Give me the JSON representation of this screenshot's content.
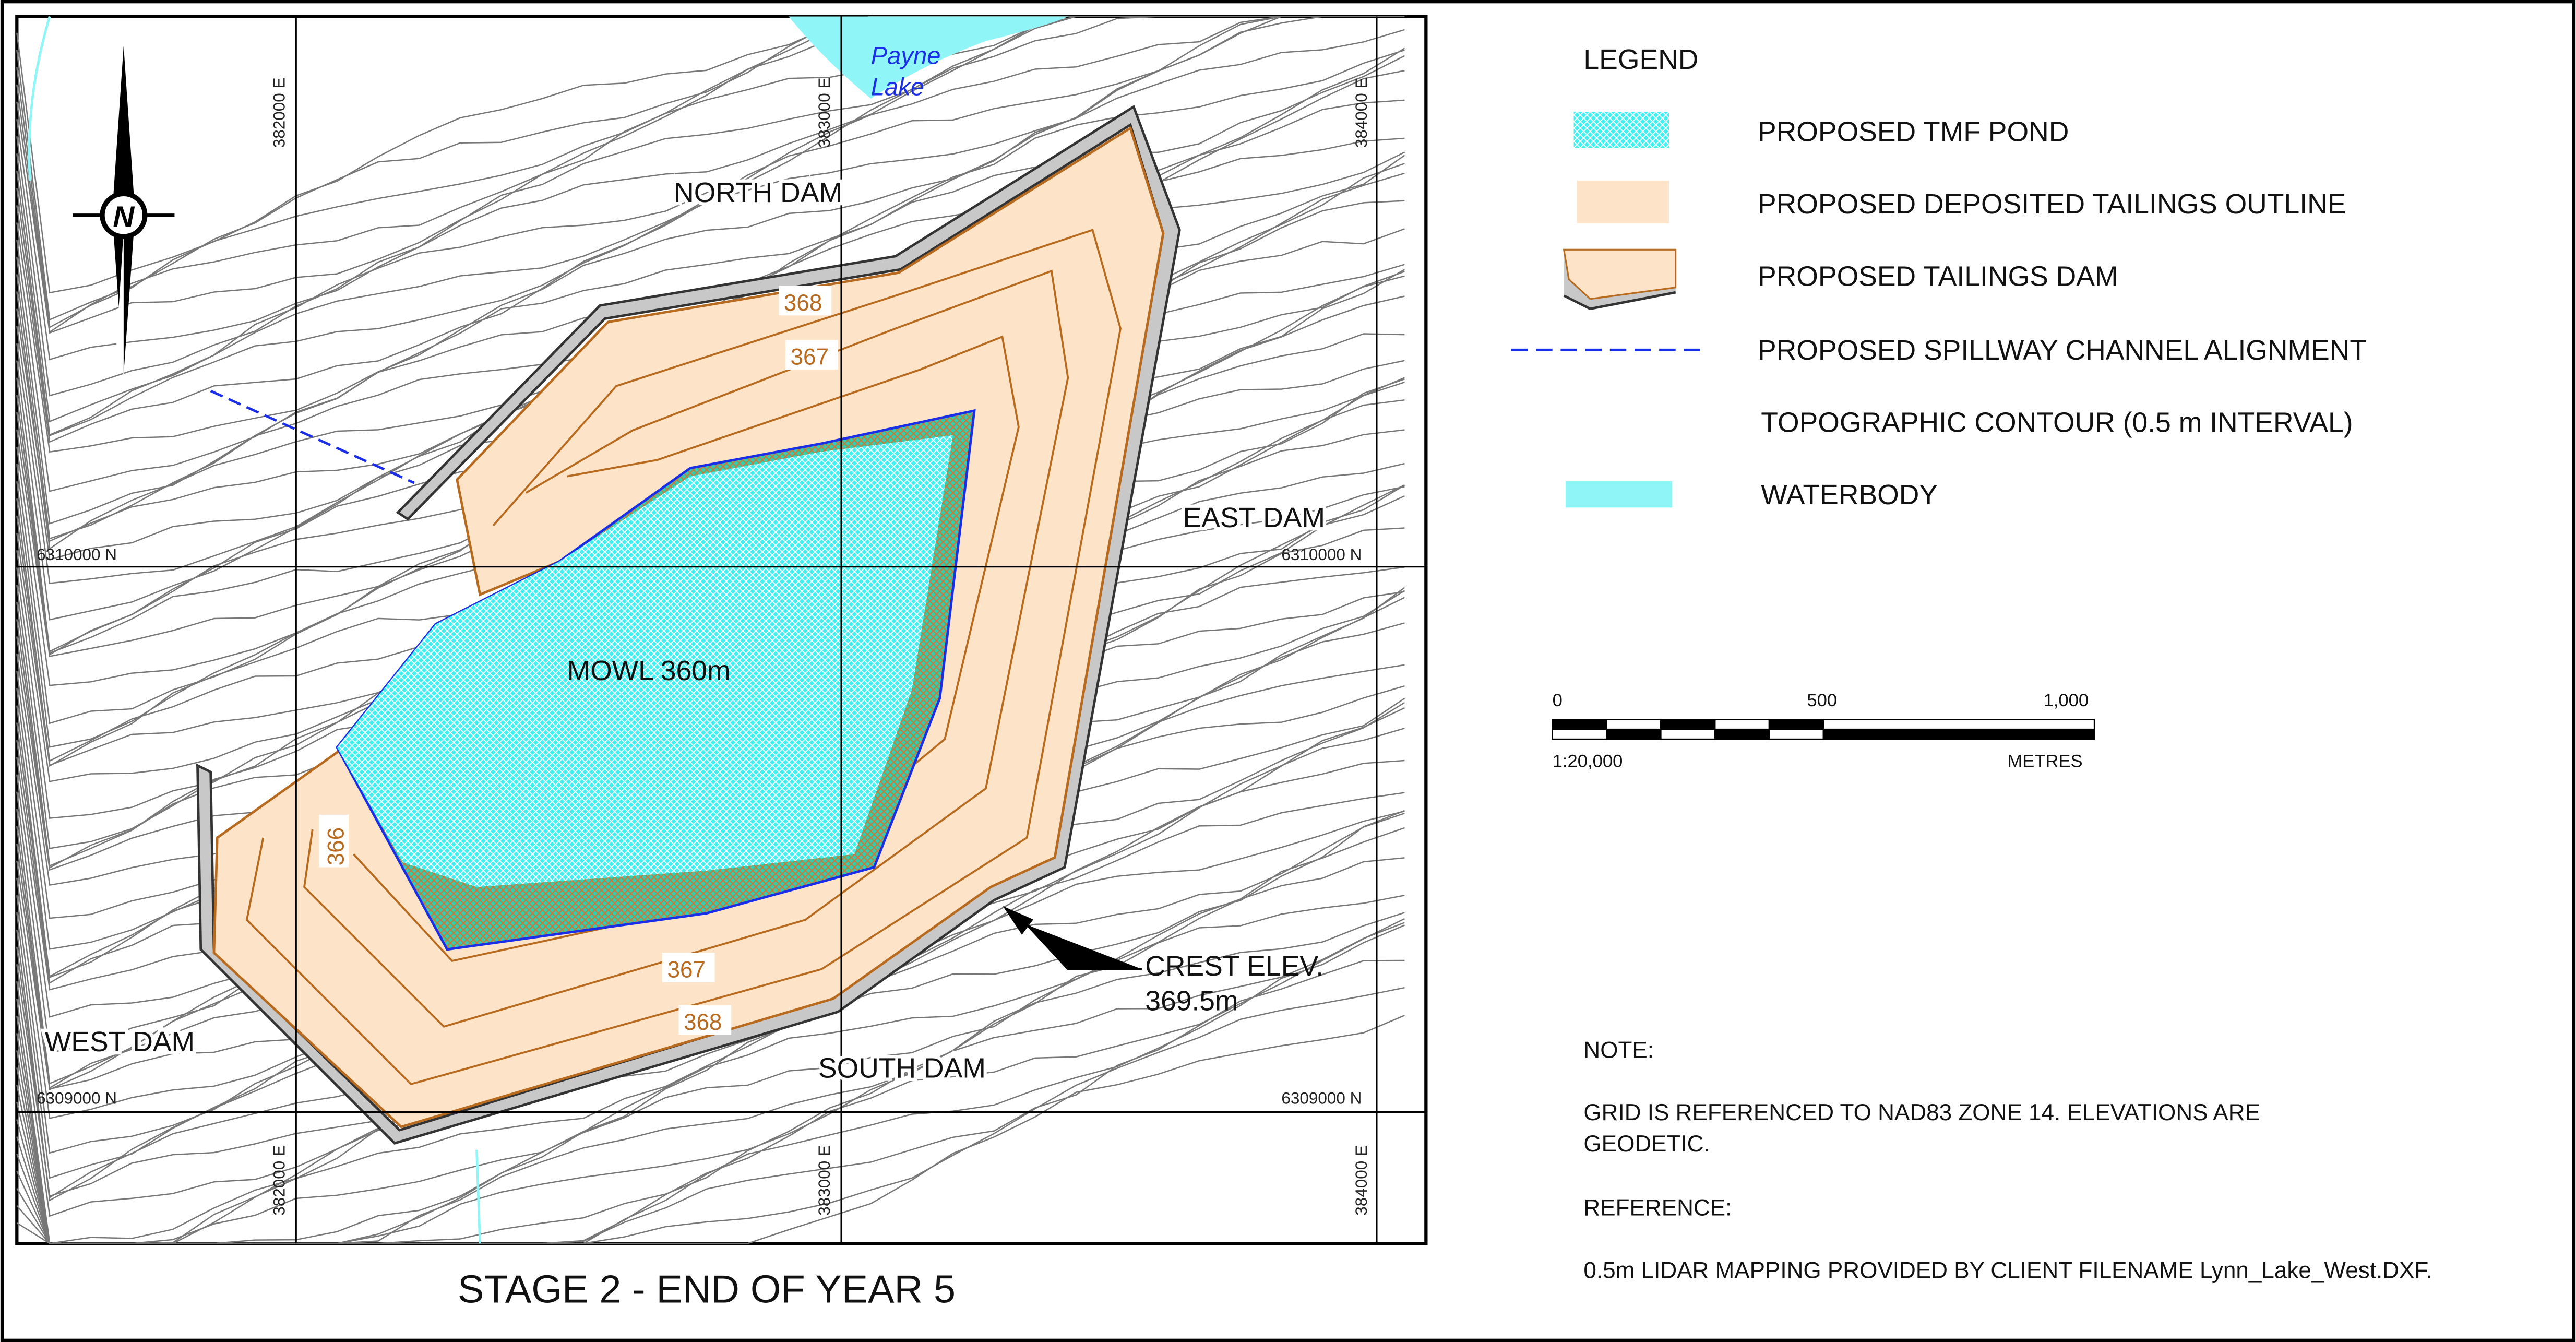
{
  "map": {
    "title": "STAGE 2 - END OF YEAR 5",
    "labels": {
      "north_dam": "NORTH DAM",
      "east_dam": "EAST DAM",
      "south_dam": "SOUTH DAM",
      "west_dam": "WEST DAM",
      "mowl": "MOWL 360m",
      "crest_line1": "CREST ELEV.",
      "crest_line2": "369.5m",
      "lake_line1": "Payne",
      "lake_line2": "Lake"
    },
    "contour_labels": [
      "368",
      "367",
      "366",
      "367",
      "368"
    ],
    "grid": {
      "eastings": [
        "382000 E",
        "383000 E",
        "384000 E"
      ],
      "northings": [
        "6310000 N",
        "6309000 N"
      ]
    },
    "north_arrow_letter": "N"
  },
  "legend": {
    "title": "LEGEND",
    "items": [
      {
        "label": "PROPOSED TMF POND",
        "color": "#3ff0f0"
      },
      {
        "label": "PROPOSED DEPOSITED TAILINGS OUTLINE",
        "color": "#fde3c8"
      },
      {
        "label": "PROPOSED TAILINGS DAM",
        "color": "#cfcfcf"
      },
      {
        "label": "PROPOSED SPILLWAY CHANNEL ALIGNMENT",
        "color": "#1a2ee8"
      },
      {
        "label": "TOPOGRAPHIC CONTOUR (0.5 m INTERVAL)",
        "color": "#888888"
      },
      {
        "label": "WATERBODY",
        "color": "#8ff5f7"
      }
    ]
  },
  "scale": {
    "ticks": [
      "0",
      "500",
      "1,000"
    ],
    "ratio": "1:20,000",
    "units": "METRES"
  },
  "notes": {
    "note_heading": "NOTE:",
    "note_line1": "GRID IS REFERENCED TO NAD83 ZONE 14. ELEVATIONS ARE",
    "note_line2": "GEODETIC.",
    "reference_heading": "REFERENCE:",
    "reference_text": "0.5m LIDAR MAPPING PROVIDED BY CLIENT FILENAME Lynn_Lake_West.DXF."
  }
}
